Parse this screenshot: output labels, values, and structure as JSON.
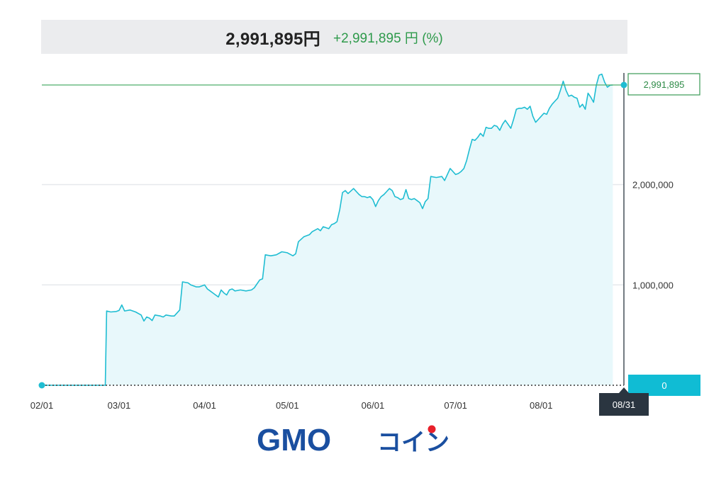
{
  "header": {
    "total_value": "2,991,895円",
    "change_text": "+2,991,895 円 (%)"
  },
  "chart_data": {
    "type": "area",
    "xlim_days": [
      0,
      211
    ],
    "ylim": [
      0,
      3000000
    ],
    "x_ticks": [
      {
        "label": "02/01",
        "day": 0
      },
      {
        "label": "03/01",
        "day": 28
      },
      {
        "label": "04/01",
        "day": 59
      },
      {
        "label": "05/01",
        "day": 89
      },
      {
        "label": "06/01",
        "day": 120
      },
      {
        "label": "07/01",
        "day": 150
      },
      {
        "label": "08/01",
        "day": 181
      }
    ],
    "y_ticks": [
      {
        "label": "1,000,000",
        "value": 1000000
      },
      {
        "label": "2,000,000",
        "value": 2000000
      }
    ],
    "last_value_label": "2,991,895",
    "last_value": 2991895,
    "cursor_date_label": "08/31",
    "cursor_value_label": "0",
    "points": [
      [
        0,
        0
      ],
      [
        23,
        0
      ],
      [
        23.5,
        740000
      ],
      [
        25,
        730000
      ],
      [
        27,
        735000
      ],
      [
        28,
        745000
      ],
      [
        29,
        800000
      ],
      [
        30,
        740000
      ],
      [
        32,
        750000
      ],
      [
        34,
        730000
      ],
      [
        36,
        700000
      ],
      [
        37,
        640000
      ],
      [
        38,
        680000
      ],
      [
        39,
        670000
      ],
      [
        40,
        645000
      ],
      [
        41,
        700000
      ],
      [
        43,
        690000
      ],
      [
        44,
        680000
      ],
      [
        45,
        700000
      ],
      [
        47,
        690000
      ],
      [
        48,
        690000
      ],
      [
        50,
        750000
      ],
      [
        51,
        1030000
      ],
      [
        53,
        1020000
      ],
      [
        54,
        1000000
      ],
      [
        56,
        980000
      ],
      [
        57,
        980000
      ],
      [
        58,
        990000
      ],
      [
        59,
        1000000
      ],
      [
        60,
        960000
      ],
      [
        61,
        940000
      ],
      [
        62,
        920000
      ],
      [
        63,
        900000
      ],
      [
        64,
        880000
      ],
      [
        65,
        950000
      ],
      [
        66,
        920000
      ],
      [
        67,
        900000
      ],
      [
        68,
        950000
      ],
      [
        69,
        960000
      ],
      [
        70,
        940000
      ],
      [
        72,
        950000
      ],
      [
        74,
        940000
      ],
      [
        76,
        950000
      ],
      [
        77,
        970000
      ],
      [
        79,
        1050000
      ],
      [
        80,
        1060000
      ],
      [
        81,
        1300000
      ],
      [
        83,
        1290000
      ],
      [
        85,
        1300000
      ],
      [
        87,
        1330000
      ],
      [
        89,
        1320000
      ],
      [
        91,
        1290000
      ],
      [
        92,
        1310000
      ],
      [
        93,
        1430000
      ],
      [
        95,
        1480000
      ],
      [
        97,
        1500000
      ],
      [
        98,
        1530000
      ],
      [
        100,
        1560000
      ],
      [
        101,
        1540000
      ],
      [
        102,
        1580000
      ],
      [
        103,
        1570000
      ],
      [
        104,
        1560000
      ],
      [
        105,
        1600000
      ],
      [
        106,
        1610000
      ],
      [
        107,
        1630000
      ],
      [
        108,
        1750000
      ],
      [
        109,
        1920000
      ],
      [
        110,
        1940000
      ],
      [
        111,
        1910000
      ],
      [
        113,
        1960000
      ],
      [
        114,
        1930000
      ],
      [
        115,
        1900000
      ],
      [
        116,
        1880000
      ],
      [
        117,
        1880000
      ],
      [
        118,
        1870000
      ],
      [
        119,
        1880000
      ],
      [
        120,
        1850000
      ],
      [
        121,
        1780000
      ],
      [
        122,
        1840000
      ],
      [
        123,
        1880000
      ],
      [
        124,
        1900000
      ],
      [
        125,
        1930000
      ],
      [
        126,
        1960000
      ],
      [
        127,
        1940000
      ],
      [
        128,
        1880000
      ],
      [
        129,
        1870000
      ],
      [
        130,
        1850000
      ],
      [
        131,
        1860000
      ],
      [
        132,
        1950000
      ],
      [
        133,
        1860000
      ],
      [
        134,
        1850000
      ],
      [
        135,
        1860000
      ],
      [
        136,
        1840000
      ],
      [
        137,
        1820000
      ],
      [
        138,
        1760000
      ],
      [
        139,
        1830000
      ],
      [
        140,
        1860000
      ],
      [
        141,
        2080000
      ],
      [
        143,
        2070000
      ],
      [
        145,
        2080000
      ],
      [
        146,
        2040000
      ],
      [
        147,
        2100000
      ],
      [
        148,
        2160000
      ],
      [
        149,
        2130000
      ],
      [
        150,
        2100000
      ],
      [
        151,
        2110000
      ],
      [
        152,
        2130000
      ],
      [
        153,
        2160000
      ],
      [
        154,
        2240000
      ],
      [
        155,
        2350000
      ],
      [
        156,
        2450000
      ],
      [
        157,
        2440000
      ],
      [
        158,
        2470000
      ],
      [
        159,
        2510000
      ],
      [
        160,
        2480000
      ],
      [
        161,
        2570000
      ],
      [
        162,
        2560000
      ],
      [
        163,
        2560000
      ],
      [
        164,
        2590000
      ],
      [
        165,
        2580000
      ],
      [
        166,
        2540000
      ],
      [
        167,
        2600000
      ],
      [
        168,
        2640000
      ],
      [
        169,
        2600000
      ],
      [
        170,
        2560000
      ],
      [
        171,
        2650000
      ],
      [
        172,
        2750000
      ],
      [
        173,
        2760000
      ],
      [
        174,
        2760000
      ],
      [
        175,
        2770000
      ],
      [
        176,
        2750000
      ],
      [
        177,
        2780000
      ],
      [
        178,
        2680000
      ],
      [
        179,
        2620000
      ],
      [
        180,
        2650000
      ],
      [
        181,
        2680000
      ],
      [
        182,
        2710000
      ],
      [
        183,
        2700000
      ],
      [
        184,
        2760000
      ],
      [
        185,
        2800000
      ],
      [
        186,
        2830000
      ],
      [
        187,
        2860000
      ],
      [
        188,
        2940000
      ],
      [
        189,
        3030000
      ],
      [
        190,
        2940000
      ],
      [
        191,
        2880000
      ],
      [
        192,
        2890000
      ],
      [
        193,
        2870000
      ],
      [
        194,
        2860000
      ],
      [
        195,
        2770000
      ],
      [
        196,
        2800000
      ],
      [
        197,
        2750000
      ],
      [
        198,
        2910000
      ],
      [
        199,
        2870000
      ],
      [
        200,
        2820000
      ],
      [
        201,
        2990000
      ],
      [
        202,
        3090000
      ],
      [
        203,
        3100000
      ],
      [
        204,
        3020000
      ],
      [
        205,
        2970000
      ],
      [
        206,
        2990000
      ],
      [
        207,
        2991895
      ]
    ]
  },
  "logo": {
    "latin": "GMO",
    "kana": "コイン"
  }
}
